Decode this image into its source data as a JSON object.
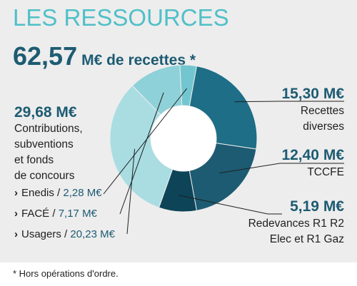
{
  "title": "LES RESSOURCES",
  "total": {
    "value": "62,57",
    "unit": "M€ de recettes *"
  },
  "left_block": {
    "amount": "29,68 M€",
    "lines": [
      "Contributions,",
      "subventions",
      "et fonds",
      "de concours"
    ],
    "items": [
      {
        "label": "Enedis",
        "value": "2,28 M€"
      },
      {
        "label": "FACÉ",
        "value": "7,17 M€"
      },
      {
        "label": "Usagers",
        "value": "20,23 M€"
      }
    ]
  },
  "right_block": [
    {
      "amount": "15,30 M€",
      "lines": [
        "Recettes",
        "diverses"
      ]
    },
    {
      "amount": "12,40 M€",
      "lines": [
        "TCCFE"
      ]
    },
    {
      "amount": "5,19 M€",
      "lines": [
        "Redevances R1 R2",
        "Elec et R1 Gaz"
      ]
    }
  ],
  "footnote": "* Hors opérations d'ordre.",
  "chart_data": {
    "type": "pie",
    "unit": "M€",
    "total": 62.57,
    "slices": [
      {
        "label": "Recettes diverses",
        "value": 15.3,
        "color": "#1d6e86"
      },
      {
        "label": "TCCFE",
        "value": 12.4,
        "color": "#1d5b72"
      },
      {
        "label": "Redevances R1 R2 Elec et R1 Gaz",
        "value": 5.19,
        "color": "#0e4458"
      },
      {
        "label": "Usagers",
        "value": 20.23,
        "color": "#a9dde2"
      },
      {
        "label": "FACÉ",
        "value": 7.17,
        "color": "#8fd1d8"
      },
      {
        "label": "Enedis",
        "value": 2.28,
        "color": "#72c6cf"
      }
    ]
  }
}
